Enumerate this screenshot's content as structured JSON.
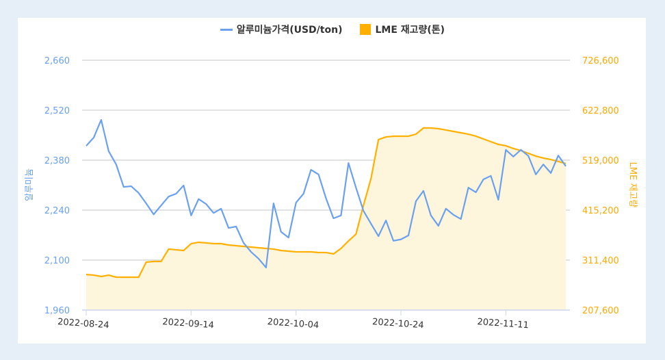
{
  "chart_data": {
    "type": "line",
    "legend": {
      "placement": "top",
      "entries": [
        "알루미늄가격(USD/ton)",
        "LME 재고량(톤)"
      ]
    },
    "left_axis": {
      "label": "알루미늄",
      "range": [
        1960,
        2660
      ],
      "ticks": [
        "1,960",
        "2,100",
        "2,240",
        "2,380",
        "2,520",
        "2,660"
      ],
      "tick_values": [
        1960,
        2100,
        2240,
        2380,
        2520,
        2660
      ]
    },
    "right_axis": {
      "label": "LME 재고량",
      "range": [
        207600,
        726600
      ],
      "ticks": [
        "207,600",
        "311,400",
        "415,200",
        "519,000",
        "622,800",
        "726,600"
      ],
      "tick_values": [
        207600,
        311400,
        415200,
        519000,
        622800,
        726600
      ]
    },
    "x_ticks": [
      {
        "index": 0,
        "label": "2022-08-24"
      },
      {
        "index": 14,
        "label": "2022-09-14"
      },
      {
        "index": 28,
        "label": "2022-10-04"
      },
      {
        "index": 42,
        "label": "2022-10-24"
      },
      {
        "index": 56,
        "label": "2022-11-11"
      }
    ],
    "grid": true,
    "series": [
      {
        "name": "알루미늄가격(USD/ton)",
        "axis": "left",
        "kind": "line",
        "color": "#6aa0f0",
        "values": [
          2420,
          2443,
          2493,
          2405,
          2368,
          2305,
          2307,
          2288,
          2259,
          2228,
          2253,
          2278,
          2286,
          2309,
          2225,
          2271,
          2257,
          2232,
          2244,
          2190,
          2194,
          2148,
          2123,
          2104,
          2079,
          2259,
          2179,
          2163,
          2261,
          2286,
          2353,
          2340,
          2273,
          2217,
          2225,
          2372,
          2303,
          2238,
          2202,
          2167,
          2211,
          2154,
          2158,
          2169,
          2265,
          2294,
          2225,
          2196,
          2244,
          2227,
          2215,
          2303,
          2290,
          2326,
          2336,
          2269,
          2409,
          2390,
          2409,
          2392,
          2340,
          2368,
          2344,
          2393,
          2363
        ]
      },
      {
        "name": "LME 재고량(톤)",
        "axis": "right",
        "kind": "area",
        "color": "#ffb000",
        "fill": "#fdf5dc",
        "values": [
          281500,
          280100,
          277300,
          280100,
          275900,
          275900,
          275900,
          275900,
          307100,
          308600,
          308600,
          334200,
          332700,
          331300,
          345500,
          348400,
          347000,
          345500,
          345500,
          342700,
          341300,
          339800,
          338400,
          337000,
          335600,
          334200,
          331300,
          329900,
          328500,
          328500,
          328500,
          327000,
          327000,
          324200,
          335600,
          351200,
          365400,
          425200,
          480600,
          561700,
          567300,
          568800,
          568800,
          568800,
          573000,
          585800,
          585800,
          584400,
          581600,
          578700,
          575900,
          573000,
          568800,
          563100,
          557400,
          551700,
          548900,
          543200,
          538900,
          533200,
          527500,
          523300,
          520400,
          516200,
          511900
        ]
      }
    ]
  }
}
